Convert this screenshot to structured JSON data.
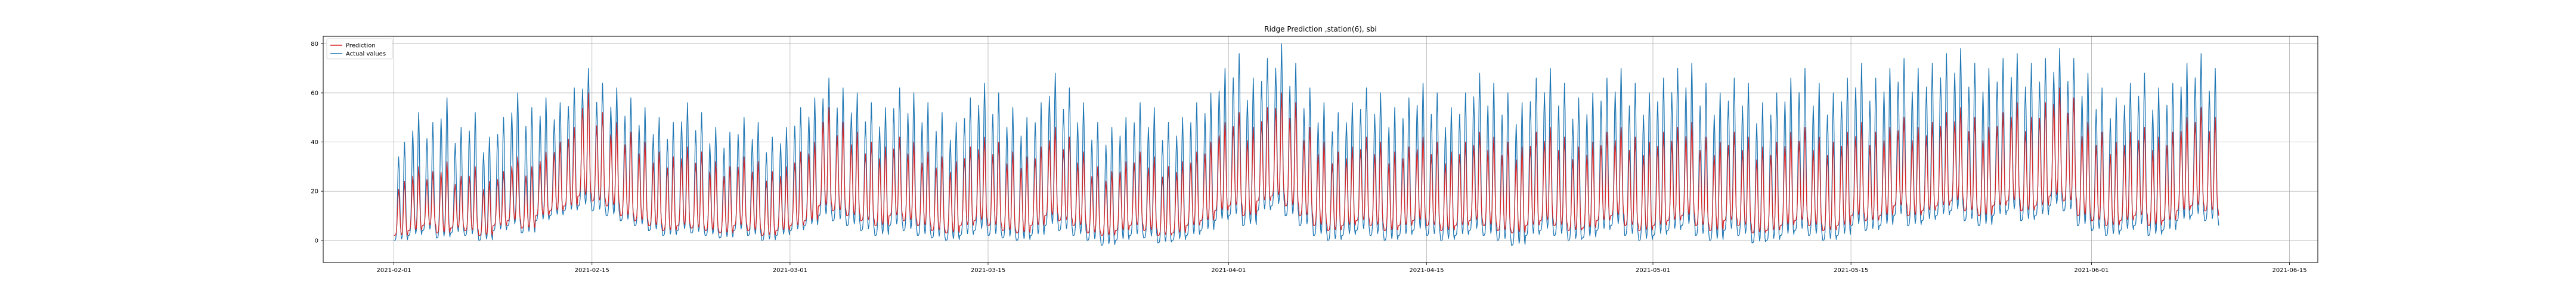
{
  "chart_data": {
    "type": "line",
    "title": "Ridge Prediction ,station(6), sbi",
    "xlabel": "",
    "ylabel": "",
    "xlim": [
      "2021-01-27",
      "2021-06-17"
    ],
    "ylim": [
      -9,
      83
    ],
    "x_ticks": [
      "2021-02-01",
      "2021-02-15",
      "2021-03-01",
      "2021-03-15",
      "2021-04-01",
      "2021-04-15",
      "2021-05-01",
      "2021-05-15",
      "2021-06-01",
      "2021-06-15"
    ],
    "y_ticks": [
      0,
      20,
      40,
      60,
      80
    ],
    "grid": true,
    "legend": "top-left",
    "data_range": [
      "2021-02-01",
      "2021-06-10"
    ],
    "series": [
      {
        "name": "Prediction",
        "color": "#d62728",
        "daily_peaks": [
          24,
          30,
          28,
          32,
          26,
          30,
          24,
          28,
          34,
          30,
          36,
          40,
          46,
          60,
          52,
          48,
          44,
          40,
          36,
          34,
          38,
          36,
          32,
          30,
          34,
          32,
          28,
          30,
          36,
          40,
          54,
          48,
          44,
          40,
          38,
          42,
          40,
          36,
          34,
          32,
          38,
          42,
          40,
          36,
          34,
          38,
          46,
          42,
          36,
          30,
          28,
          32,
          36,
          34,
          30,
          32,
          36,
          40,
          48,
          52,
          46,
          54,
          60,
          56,
          46,
          40,
          36,
          38,
          42,
          40,
          36,
          38,
          42,
          40,
          36,
          40,
          44,
          42,
          40,
          38,
          44,
          46,
          42,
          38,
          40,
          44,
          46,
          42,
          40,
          44,
          46,
          48,
          42,
          40,
          44,
          42,
          38,
          40,
          44,
          46,
          42,
          40,
          44,
          48,
          44,
          46,
          50,
          46,
          48,
          52,
          54,
          50,
          46,
          52,
          56,
          50,
          56,
          62,
          58,
          48,
          44,
          40,
          44,
          46,
          42,
          44,
          50,
          54,
          50,
          48
        ],
        "daily_troughs": [
          2,
          4,
          6,
          3,
          5,
          4,
          2,
          6,
          8,
          5,
          10,
          12,
          14,
          18,
          16,
          14,
          10,
          8,
          6,
          4,
          6,
          5,
          4,
          3,
          6,
          4,
          2,
          4,
          6,
          8,
          14,
          12,
          10,
          8,
          6,
          10,
          8,
          6,
          4,
          3,
          6,
          8,
          6,
          4,
          3,
          6,
          10,
          8,
          6,
          3,
          2,
          4,
          6,
          4,
          2,
          3,
          6,
          8,
          12,
          14,
          10,
          16,
          18,
          14,
          10,
          6,
          4,
          6,
          8,
          6,
          4,
          6,
          8,
          6,
          4,
          6,
          8,
          6,
          4,
          3,
          6,
          8,
          6,
          4,
          5,
          8,
          10,
          6,
          4,
          6,
          8,
          10,
          6,
          4,
          8,
          6,
          3,
          4,
          6,
          8,
          6,
          4,
          6,
          10,
          8,
          10,
          14,
          10,
          12,
          14,
          16,
          12,
          10,
          14,
          16,
          12,
          14,
          18,
          16,
          10,
          8,
          6,
          8,
          10,
          6,
          8,
          12,
          14,
          12,
          10
        ]
      },
      {
        "name": "Actual values",
        "color": "#1f77b4",
        "daily_peaks": [
          40,
          52,
          48,
          58,
          46,
          52,
          42,
          50,
          60,
          54,
          58,
          56,
          62,
          70,
          64,
          62,
          58,
          54,
          50,
          48,
          56,
          52,
          46,
          44,
          50,
          48,
          42,
          46,
          54,
          58,
          66,
          62,
          60,
          56,
          54,
          62,
          60,
          56,
          52,
          48,
          58,
          64,
          60,
          54,
          50,
          56,
          68,
          62,
          56,
          48,
          46,
          50,
          56,
          54,
          48,
          50,
          56,
          60,
          70,
          76,
          66,
          74,
          80,
          72,
          62,
          56,
          52,
          56,
          62,
          60,
          54,
          58,
          64,
          60,
          54,
          60,
          68,
          64,
          60,
          56,
          66,
          70,
          64,
          58,
          60,
          66,
          70,
          64,
          60,
          66,
          70,
          72,
          64,
          60,
          66,
          64,
          56,
          60,
          66,
          70,
          64,
          60,
          66,
          72,
          66,
          70,
          74,
          70,
          72,
          76,
          78,
          72,
          70,
          74,
          76,
          72,
          74,
          78,
          74,
          68,
          62,
          58,
          64,
          68,
          62,
          64,
          72,
          76,
          70,
          44
        ],
        "daily_troughs": [
          0,
          2,
          4,
          1,
          3,
          2,
          0,
          4,
          6,
          3,
          8,
          10,
          12,
          14,
          12,
          10,
          8,
          6,
          4,
          2,
          4,
          3,
          2,
          1,
          4,
          2,
          0,
          2,
          4,
          6,
          10,
          8,
          6,
          4,
          2,
          6,
          4,
          2,
          1,
          0,
          2,
          4,
          2,
          1,
          0,
          2,
          6,
          4,
          2,
          0,
          -2,
          0,
          2,
          1,
          -1,
          0,
          2,
          4,
          8,
          10,
          6,
          12,
          14,
          10,
          6,
          2,
          0,
          2,
          4,
          2,
          0,
          2,
          4,
          2,
          0,
          2,
          4,
          2,
          0,
          -2,
          2,
          4,
          2,
          0,
          1,
          4,
          6,
          2,
          0,
          2,
          4,
          6,
          2,
          0,
          4,
          2,
          -1,
          0,
          2,
          4,
          2,
          0,
          2,
          6,
          4,
          6,
          10,
          6,
          8,
          10,
          12,
          8,
          6,
          10,
          12,
          8,
          10,
          14,
          12,
          6,
          4,
          2,
          4,
          6,
          2,
          4,
          8,
          10,
          8,
          6
        ]
      }
    ]
  }
}
